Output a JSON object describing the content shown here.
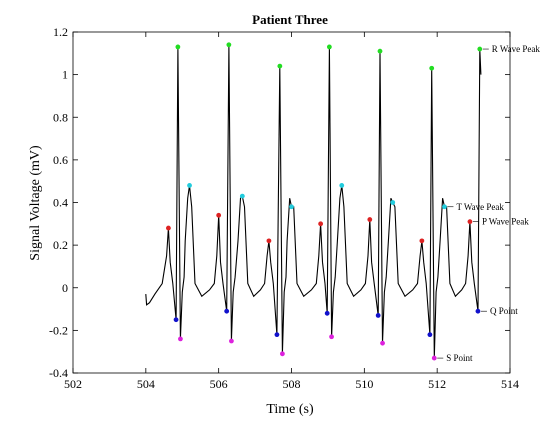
{
  "chart_data": {
    "type": "line",
    "title": "Patient Three",
    "xlabel": "Time (s)",
    "ylabel": "Signal Voltage (mV)",
    "xlim": [
      502,
      514
    ],
    "ylim": [
      -0.4,
      1.2
    ],
    "xticks": [
      "502",
      "504",
      "506",
      "508",
      "510",
      "512",
      "514"
    ],
    "yticks": [
      "-0.4",
      "-0.2",
      "0",
      "0.2",
      "0.4",
      "0.6",
      "0.8",
      "1",
      "1.2"
    ],
    "grid": false,
    "colors": {
      "signal": "#000000",
      "r_peak": "#22dd22",
      "t_peak": "#22ccdd",
      "p_peak": "#dd2222",
      "q_point": "#1111cc",
      "s_point": "#dd22dd"
    },
    "beats": [
      {
        "p": [
          504.62,
          0.28
        ],
        "q": [
          504.83,
          -0.15
        ],
        "r": [
          504.88,
          1.13
        ],
        "s": [
          504.95,
          -0.24
        ],
        "t": [
          505.2,
          0.48
        ]
      },
      {
        "p": [
          506.0,
          0.34
        ],
        "q": [
          506.22,
          -0.11
        ],
        "r": [
          506.28,
          1.14
        ],
        "s": [
          506.35,
          -0.25
        ],
        "t": [
          506.65,
          0.43
        ]
      },
      {
        "p": [
          507.38,
          0.22
        ],
        "q": [
          507.6,
          -0.22
        ],
        "r": [
          507.68,
          1.04
        ],
        "s": [
          507.75,
          -0.31
        ],
        "t": [
          508.0,
          0.38
        ]
      },
      {
        "p": [
          508.8,
          0.3
        ],
        "q": [
          508.98,
          -0.12
        ],
        "r": [
          509.04,
          1.13
        ],
        "s": [
          509.1,
          -0.23
        ],
        "t": [
          509.38,
          0.48
        ]
      },
      {
        "p": [
          510.15,
          0.32
        ],
        "q": [
          510.38,
          -0.13
        ],
        "r": [
          510.43,
          1.11
        ],
        "s": [
          510.5,
          -0.26
        ],
        "t": [
          510.78,
          0.4
        ]
      },
      {
        "p": [
          511.58,
          0.22
        ],
        "q": [
          511.8,
          -0.22
        ],
        "r": [
          511.85,
          1.03
        ],
        "s": [
          511.92,
          -0.33
        ],
        "t": [
          512.2,
          0.38
        ]
      },
      {
        "p": [
          512.9,
          0.31
        ],
        "q": [
          513.12,
          -0.11
        ],
        "r": [
          513.17,
          1.12
        ],
        "s": null,
        "t": null
      }
    ],
    "annotations": [
      {
        "text": "R Wave Peak",
        "beat": 6,
        "wave": "r"
      },
      {
        "text": "T Wave Peak",
        "beat": 5,
        "wave": "t"
      },
      {
        "text": "P Wave Peak",
        "beat": 6,
        "wave": "p"
      },
      {
        "text": "Q Point",
        "beat": 6,
        "wave": "q"
      },
      {
        "text": "S Point",
        "beat": 5,
        "wave": "s"
      }
    ]
  }
}
